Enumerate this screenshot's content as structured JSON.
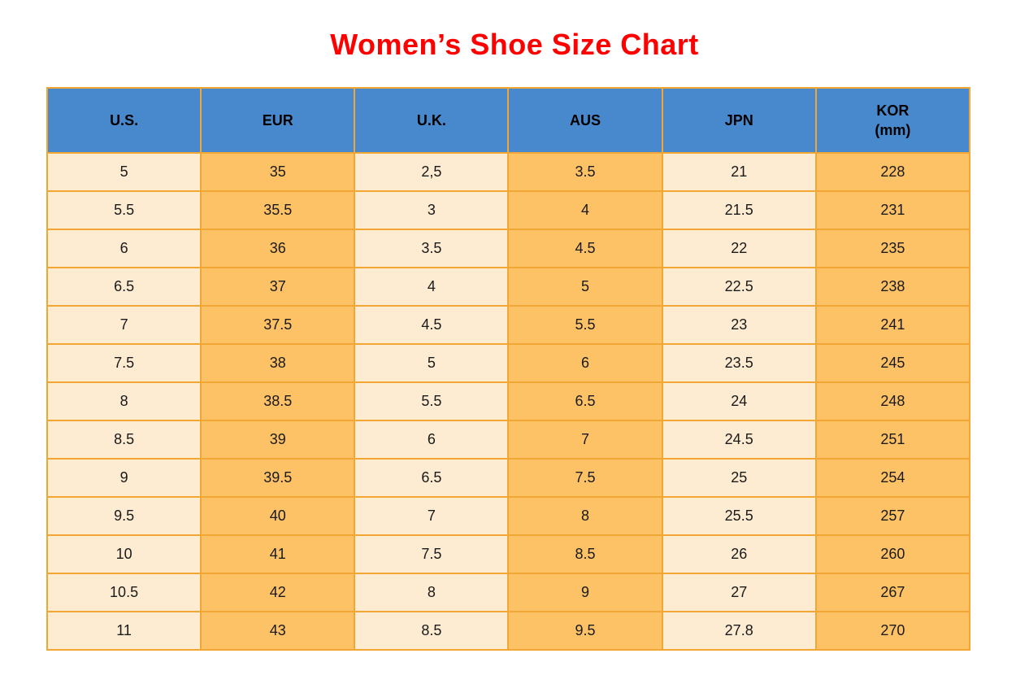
{
  "title": {
    "text": "Women’s Shoe Size Chart"
  },
  "theme": {
    "page_bg": "#ffffff",
    "title_color": "#ff0000",
    "header_bg": "#4789cc",
    "header_text": "#000000",
    "cell_text": "#1a1a1a",
    "cell_light": "#fdecd1",
    "cell_orange": "#fdc166",
    "grid_border": "#f2a633"
  },
  "table": {
    "headers": [
      {
        "label": "U.S."
      },
      {
        "label": "EUR"
      },
      {
        "label": "U.K."
      },
      {
        "label": "AUS"
      },
      {
        "label": "JPN"
      },
      {
        "label": "KOR",
        "sub": "(mm)"
      }
    ]
  },
  "chart_data": {
    "type": "table",
    "title": "Women’s Shoe Size Chart",
    "columns": [
      "U.S.",
      "EUR",
      "U.K.",
      "AUS",
      "JPN",
      "KOR (mm)"
    ],
    "rows": [
      [
        "5",
        "35",
        "2,5",
        "3.5",
        "21",
        "228"
      ],
      [
        "5.5",
        "35.5",
        "3",
        "4",
        "21.5",
        "231"
      ],
      [
        "6",
        "36",
        "3.5",
        "4.5",
        "22",
        "235"
      ],
      [
        "6.5",
        "37",
        "4",
        "5",
        "22.5",
        "238"
      ],
      [
        "7",
        "37.5",
        "4.5",
        "5.5",
        "23",
        "241"
      ],
      [
        "7.5",
        "38",
        "5",
        "6",
        "23.5",
        "245"
      ],
      [
        "8",
        "38.5",
        "5.5",
        "6.5",
        "24",
        "248"
      ],
      [
        "8.5",
        "39",
        "6",
        "7",
        "24.5",
        "251"
      ],
      [
        "9",
        "39.5",
        "6.5",
        "7.5",
        "25",
        "254"
      ],
      [
        "9.5",
        "40",
        "7",
        "8",
        "25.5",
        "257"
      ],
      [
        "10",
        "41",
        "7.5",
        "8.5",
        "26",
        "260"
      ],
      [
        "10.5",
        "42",
        "8",
        "9",
        "27",
        "267"
      ],
      [
        "11",
        "43",
        "8.5",
        "9.5",
        "27.8",
        "270"
      ]
    ],
    "layout": {
      "column_fill_pattern": [
        "light",
        "orange",
        "light",
        "orange",
        "light",
        "orange"
      ],
      "grid": true,
      "header_position": "top"
    }
  }
}
